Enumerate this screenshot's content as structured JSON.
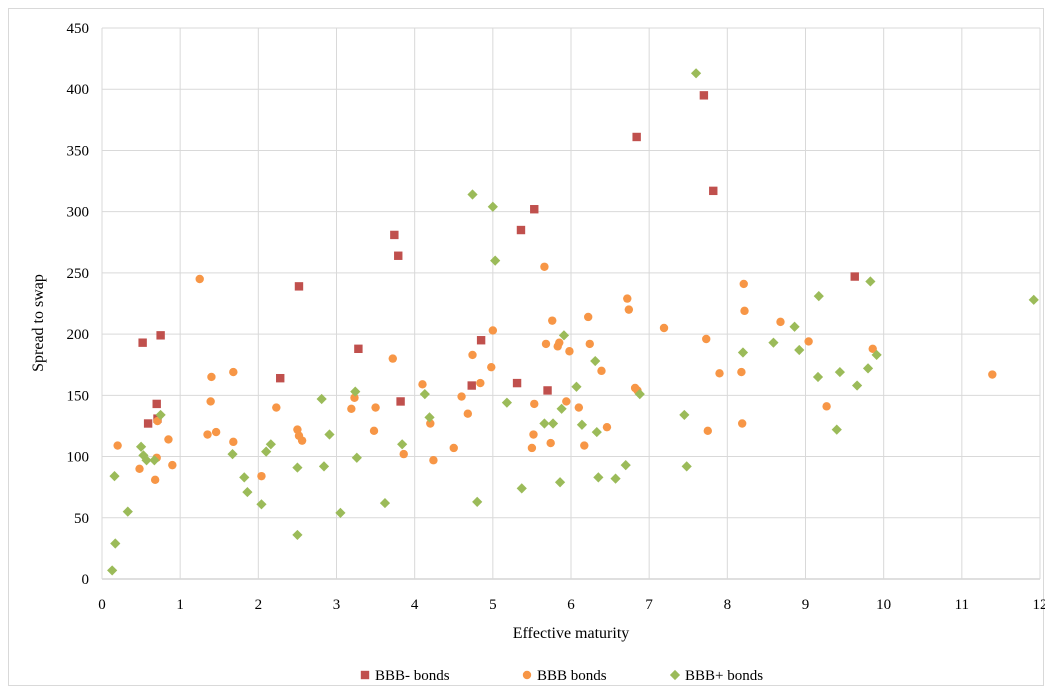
{
  "chart_data": {
    "type": "scatter",
    "xlabel": "Effective maturity",
    "ylabel": "Spread to swap",
    "xlim": [
      0,
      12
    ],
    "ylim": [
      0,
      450
    ],
    "xticks": [
      0,
      1,
      2,
      3,
      4,
      5,
      6,
      7,
      8,
      9,
      10,
      11,
      12
    ],
    "yticks": [
      0,
      50,
      100,
      150,
      200,
      250,
      300,
      350,
      400,
      450
    ],
    "grid": true,
    "legend_position": "bottom",
    "series": [
      {
        "name": "BBB- bonds",
        "marker": "square",
        "color": "#c0504d",
        "points": [
          [
            0.52,
            193
          ],
          [
            0.59,
            127
          ],
          [
            0.7,
            143
          ],
          [
            0.71,
            131
          ],
          [
            0.75,
            199
          ],
          [
            2.28,
            164
          ],
          [
            2.52,
            239
          ],
          [
            3.28,
            188
          ],
          [
            3.74,
            281
          ],
          [
            3.79,
            264
          ],
          [
            3.82,
            145
          ],
          [
            4.73,
            158
          ],
          [
            4.85,
            195
          ],
          [
            5.31,
            160
          ],
          [
            5.36,
            285
          ],
          [
            5.53,
            302
          ],
          [
            5.7,
            154
          ],
          [
            6.84,
            361
          ],
          [
            7.7,
            395
          ],
          [
            7.82,
            317
          ],
          [
            9.63,
            247
          ]
        ]
      },
      {
        "name": "BBB bonds",
        "marker": "circle",
        "color": "#f79646",
        "points": [
          [
            0.2,
            109
          ],
          [
            0.48,
            90
          ],
          [
            0.68,
            81
          ],
          [
            0.7,
            99
          ],
          [
            0.71,
            129
          ],
          [
            0.85,
            114
          ],
          [
            0.9,
            93
          ],
          [
            1.25,
            245
          ],
          [
            1.35,
            118
          ],
          [
            1.39,
            145
          ],
          [
            1.4,
            165
          ],
          [
            1.46,
            120
          ],
          [
            1.68,
            169
          ],
          [
            1.68,
            112
          ],
          [
            2.04,
            84
          ],
          [
            2.23,
            140
          ],
          [
            2.5,
            122
          ],
          [
            2.52,
            117
          ],
          [
            2.56,
            113
          ],
          [
            3.19,
            139
          ],
          [
            3.23,
            148
          ],
          [
            3.48,
            121
          ],
          [
            3.5,
            140
          ],
          [
            3.72,
            180
          ],
          [
            3.86,
            102
          ],
          [
            4.1,
            159
          ],
          [
            4.2,
            127
          ],
          [
            4.24,
            97
          ],
          [
            4.5,
            107
          ],
          [
            4.6,
            149
          ],
          [
            4.68,
            135
          ],
          [
            4.74,
            183
          ],
          [
            4.84,
            160
          ],
          [
            4.98,
            173
          ],
          [
            5.0,
            203
          ],
          [
            5.5,
            107
          ],
          [
            5.52,
            118
          ],
          [
            5.53,
            143
          ],
          [
            5.66,
            255
          ],
          [
            5.68,
            192
          ],
          [
            5.74,
            111
          ],
          [
            5.76,
            211
          ],
          [
            5.83,
            190
          ],
          [
            5.85,
            193
          ],
          [
            5.94,
            145
          ],
          [
            5.98,
            186
          ],
          [
            6.1,
            140
          ],
          [
            6.17,
            109
          ],
          [
            6.22,
            214
          ],
          [
            6.24,
            192
          ],
          [
            6.39,
            170
          ],
          [
            6.46,
            124
          ],
          [
            6.72,
            229
          ],
          [
            6.74,
            220
          ],
          [
            6.82,
            156
          ],
          [
            6.85,
            154
          ],
          [
            7.19,
            205
          ],
          [
            7.73,
            196
          ],
          [
            7.75,
            121
          ],
          [
            7.9,
            168
          ],
          [
            8.18,
            169
          ],
          [
            8.19,
            127
          ],
          [
            8.21,
            241
          ],
          [
            8.22,
            219
          ],
          [
            8.68,
            210
          ],
          [
            9.04,
            194
          ],
          [
            9.27,
            141
          ],
          [
            9.86,
            188
          ],
          [
            11.39,
            167
          ]
        ]
      },
      {
        "name": "BBB+ bonds",
        "marker": "diamond",
        "color": "#9bbb59",
        "points": [
          [
            0.13,
            7
          ],
          [
            0.17,
            29
          ],
          [
            0.16,
            84
          ],
          [
            0.33,
            55
          ],
          [
            0.5,
            108
          ],
          [
            0.53,
            101
          ],
          [
            0.57,
            97
          ],
          [
            0.67,
            97
          ],
          [
            0.75,
            134
          ],
          [
            1.67,
            102
          ],
          [
            1.82,
            83
          ],
          [
            1.86,
            71
          ],
          [
            2.04,
            61
          ],
          [
            2.1,
            104
          ],
          [
            2.16,
            110
          ],
          [
            2.5,
            36
          ],
          [
            2.5,
            91
          ],
          [
            2.81,
            147
          ],
          [
            2.84,
            92
          ],
          [
            2.91,
            118
          ],
          [
            3.05,
            54
          ],
          [
            3.24,
            153
          ],
          [
            3.26,
            99
          ],
          [
            3.62,
            62
          ],
          [
            3.84,
            110
          ],
          [
            4.13,
            151
          ],
          [
            4.19,
            132
          ],
          [
            4.74,
            314
          ],
          [
            4.8,
            63
          ],
          [
            5.0,
            304
          ],
          [
            5.03,
            260
          ],
          [
            5.18,
            144
          ],
          [
            5.37,
            74
          ],
          [
            5.66,
            127
          ],
          [
            5.77,
            127
          ],
          [
            5.86,
            79
          ],
          [
            5.88,
            139
          ],
          [
            5.91,
            199
          ],
          [
            6.07,
            157
          ],
          [
            6.14,
            126
          ],
          [
            6.31,
            178
          ],
          [
            6.33,
            120
          ],
          [
            6.35,
            83
          ],
          [
            6.57,
            82
          ],
          [
            6.7,
            93
          ],
          [
            6.88,
            151
          ],
          [
            7.45,
            134
          ],
          [
            7.48,
            92
          ],
          [
            7.6,
            413
          ],
          [
            8.2,
            185
          ],
          [
            8.59,
            193
          ],
          [
            8.86,
            206
          ],
          [
            8.92,
            187
          ],
          [
            9.16,
            165
          ],
          [
            9.17,
            231
          ],
          [
            9.4,
            122
          ],
          [
            9.44,
            169
          ],
          [
            9.66,
            158
          ],
          [
            9.8,
            172
          ],
          [
            9.83,
            243
          ],
          [
            9.91,
            183
          ],
          [
            11.92,
            228
          ]
        ]
      }
    ]
  }
}
